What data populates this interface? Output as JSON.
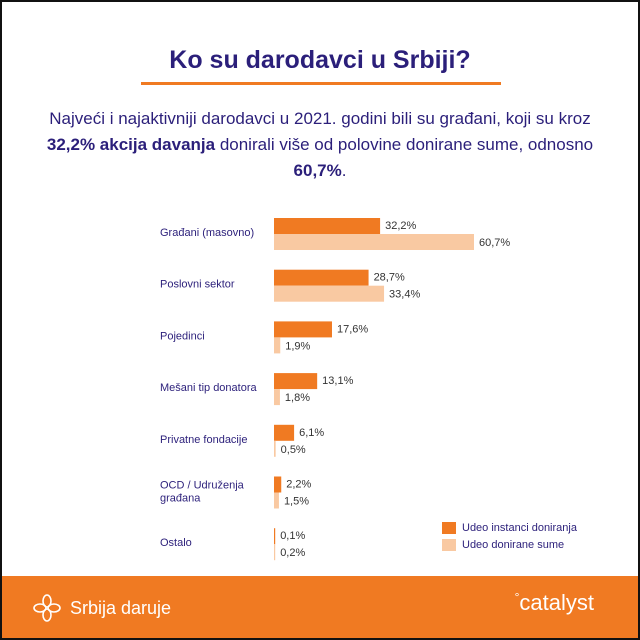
{
  "header": {
    "title": "Ko su darodavci u Srbiji?",
    "subtitle_part1": "Najveći i najaktivniji darodavci u 2021. godini bili su građani, koji su kroz ",
    "subtitle_bold1": "32,2% akcija davanja",
    "subtitle_part2": " donirali više od polovine donirane sume, odnosno ",
    "subtitle_bold2": "60,7%",
    "subtitle_part3": "."
  },
  "colors": {
    "accent": "#f07a22",
    "light": "#f9c9a2",
    "navy": "#2b1f7a"
  },
  "chart_data": {
    "type": "bar",
    "orientation": "horizontal",
    "categories": [
      "Građani (masovno)",
      "Poslovni sektor",
      "Pojedinci",
      "Mešani tip donatora",
      "Privatne fondacije",
      "OCD / Udruženja\ngrađana",
      "Ostalo"
    ],
    "series": [
      {
        "name": "Udeo instanci doniranja",
        "values": [
          32.2,
          28.7,
          17.6,
          13.1,
          6.1,
          2.2,
          0.1
        ],
        "labels": [
          "32,2%",
          "28,7%",
          "17,6%",
          "13,1%",
          "6,1%",
          "2,2%",
          "0,1%"
        ],
        "color": "#f07a22"
      },
      {
        "name": "Udeo donirane sume",
        "values": [
          60.7,
          33.4,
          1.9,
          1.8,
          0.5,
          1.5,
          0.2
        ],
        "labels": [
          "60,7%",
          "33,4%",
          "1,9%",
          "1,8%",
          "0,5%",
          "1,5%",
          "0,2%"
        ],
        "color": "#f9c9a2"
      }
    ],
    "legend": "bottom-right"
  },
  "footer": {
    "brand_left": "Srbija daruje",
    "brand_right": "catalyst",
    "brand_icon": "flower-logo-icon",
    "catalyst_icon": "dots-logo-icon"
  }
}
